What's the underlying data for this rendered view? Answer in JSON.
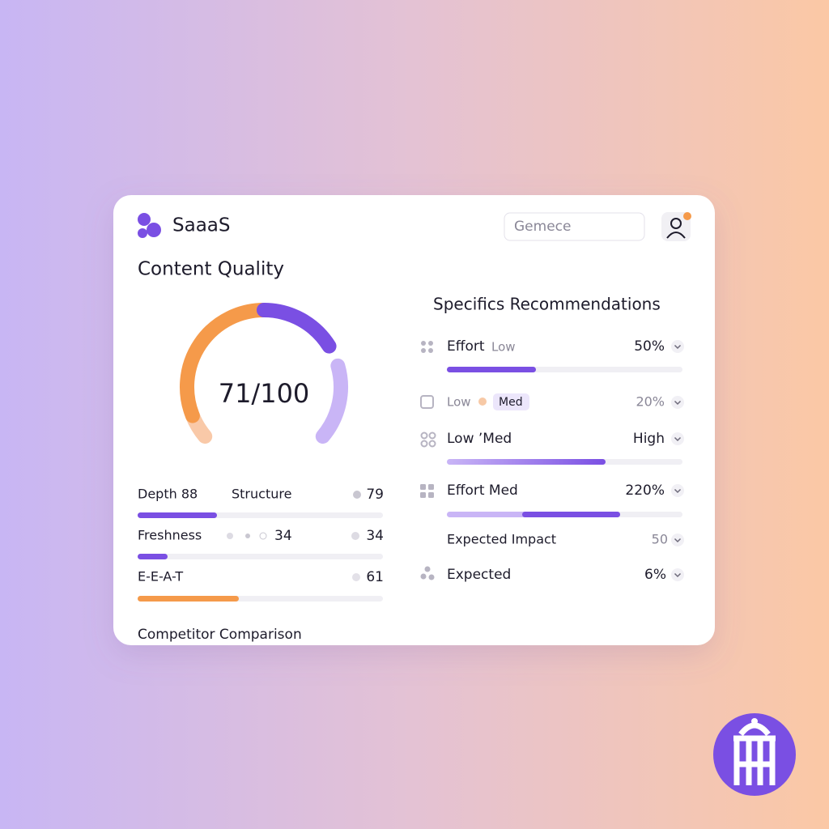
{
  "header": {
    "brand": "SaaaS",
    "search": "Gemece"
  },
  "content_quality": {
    "title": "Content Quality",
    "score": "71/100",
    "metrics": [
      {
        "label": "Depth 88",
        "label2": "Structure",
        "value": "79"
      },
      {
        "label": "Freshness",
        "mid": "34",
        "value": "34"
      },
      {
        "label": "E-E-A-T",
        "value": "61"
      }
    ]
  },
  "competitor_comparison": "Competitor Comparison",
  "recommendations": {
    "title": "Specifics Recommendations",
    "items": [
      {
        "label": "Effort",
        "tag": "Low",
        "value": "50%"
      },
      {
        "label": "Low",
        "tag": "Med",
        "value": "20%"
      },
      {
        "label": "Low ʼMed",
        "value": "High"
      },
      {
        "label": "Effort Med",
        "value": "220%"
      },
      {
        "label": "Expected Impact",
        "value": "50"
      },
      {
        "label": "Expected",
        "value": "6%"
      }
    ]
  }
}
